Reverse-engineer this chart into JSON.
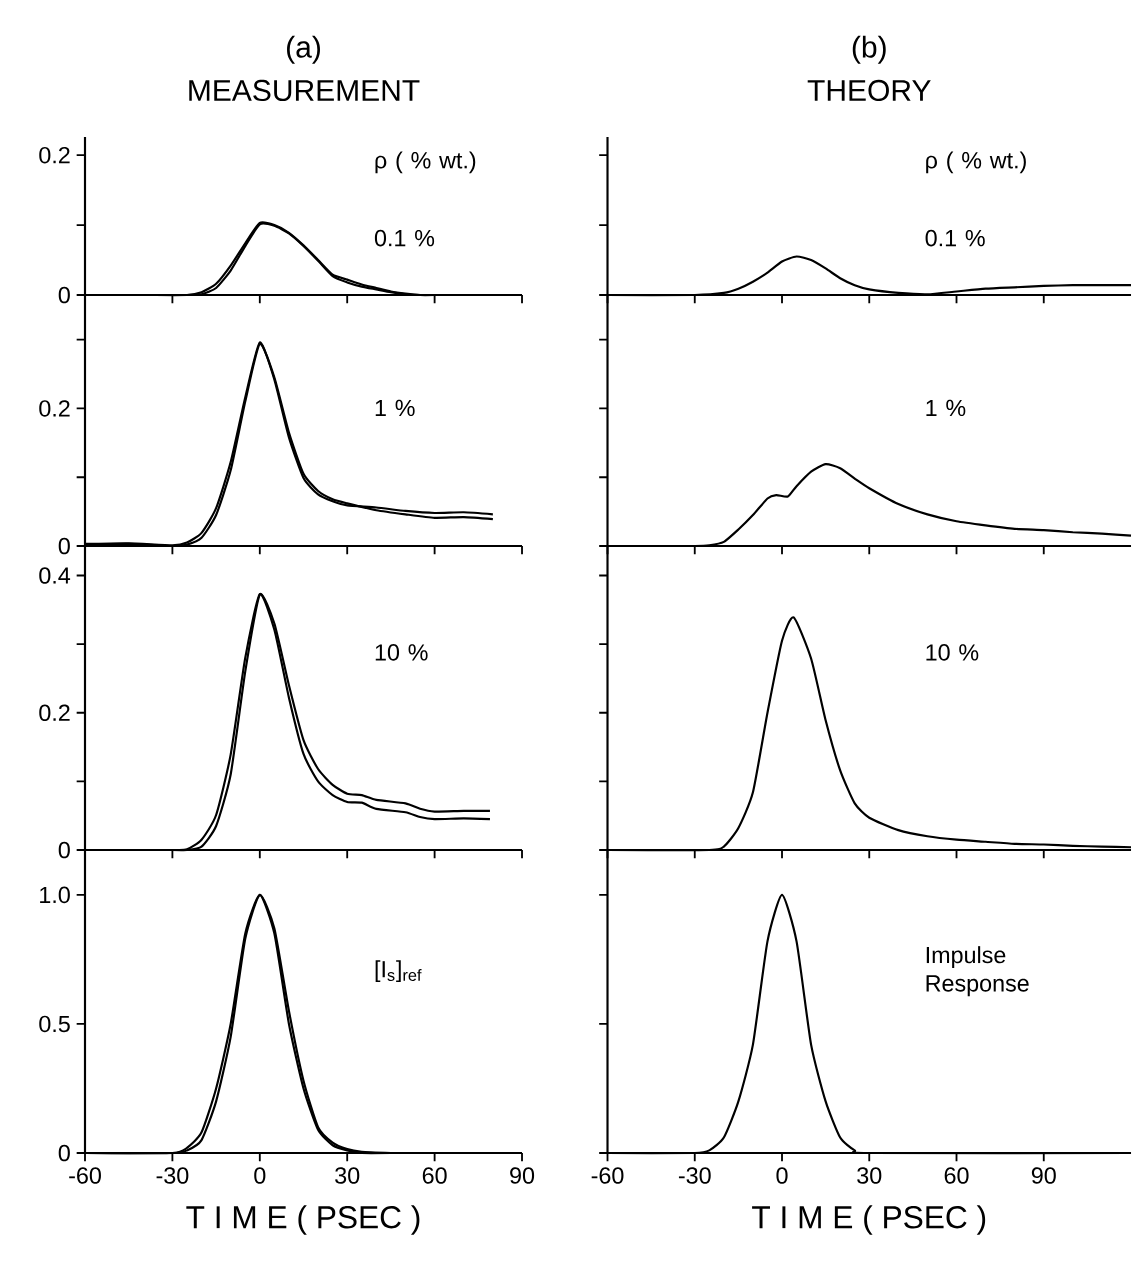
{
  "chart_data": [
    {
      "type": "line",
      "title": "(a)",
      "subtitle": "MEASUREMENT",
      "annotations": [
        "ρ ( % wt.)",
        "0.1 %"
      ],
      "tick_labels": "y",
      "x": [
        -60,
        -40,
        -25,
        -20,
        -15,
        -10,
        -5,
        0,
        5,
        10,
        15,
        20,
        25,
        30,
        35,
        40,
        45,
        50,
        55,
        60
      ],
      "series": [
        {
          "color": "#000000",
          "values": [
            0,
            0,
            0,
            0.004,
            0.016,
            0.042,
            0.074,
            0.103,
            0.1,
            0.089,
            0.071,
            0.05,
            0.029,
            0.022,
            0.015,
            0.01,
            0.005,
            0.002,
            0,
            0
          ]
        },
        {
          "color": "#000000",
          "x": [
            -25,
            -20,
            -15,
            -10,
            -5,
            0,
            5,
            10,
            15,
            20,
            25,
            30,
            35,
            40,
            45,
            50,
            55
          ],
          "values": [
            0,
            0.001,
            0.01,
            0.035,
            0.07,
            0.101,
            0.099,
            0.088,
            0.07,
            0.049,
            0.027,
            0.018,
            0.012,
            0.008,
            0.004,
            0.001,
            0
          ]
        }
      ],
      "xlim": [
        -60,
        90
      ],
      "ylim": [
        0,
        0.226
      ],
      "xticks": [
        -60,
        -30,
        0,
        30,
        60,
        90
      ],
      "yticks": [
        0,
        {
          "value": 0.1,
          "label": null
        },
        0.2
      ]
    },
    {
      "type": "line",
      "title": "(b)",
      "subtitle": "THEORY",
      "annotations": [
        "ρ ( % wt.)",
        "0.1 %"
      ],
      "tick_labels": false,
      "x": [
        -60,
        -30,
        -20,
        -15,
        -10,
        -5,
        0,
        5,
        10,
        15,
        20,
        25,
        30,
        40,
        50,
        60,
        70,
        80,
        90,
        100,
        110,
        120
      ],
      "series": [
        {
          "color": "#000000",
          "values": [
            0,
            0,
            0.003,
            0.009,
            0.019,
            0.032,
            0.048,
            0.055,
            0.05,
            0.038,
            0.024,
            0.014,
            0.008,
            0.003,
            0.001,
            0.005,
            0.009,
            0.011,
            0.013,
            0.014,
            0.014,
            0.014
          ]
        }
      ],
      "xlim": [
        -60,
        120
      ],
      "ylim": [
        0,
        0.226
      ],
      "xticks": [
        -60,
        -30,
        0,
        30,
        60,
        90
      ],
      "yticks": [
        0,
        {
          "value": 0.1,
          "label": null
        },
        0.2
      ]
    },
    {
      "type": "line",
      "annotations": [
        "1 %"
      ],
      "tick_labels": "y",
      "x": [
        -60,
        -45,
        -30,
        -25,
        -20,
        -15,
        -10,
        -5,
        0,
        5,
        10,
        15,
        20,
        25,
        30,
        40,
        50,
        60,
        70,
        80
      ],
      "series": [
        {
          "color": "#000000",
          "values": [
            0.003,
            0.004,
            0.001,
            0.005,
            0.019,
            0.055,
            0.122,
            0.216,
            0.296,
            0.242,
            0.158,
            0.099,
            0.075,
            0.065,
            0.059,
            0.056,
            0.051,
            0.048,
            0.049,
            0.046
          ]
        },
        {
          "color": "#000000",
          "values": [
            0.002,
            0.003,
            0,
            0.002,
            0.012,
            0.045,
            0.11,
            0.21,
            0.294,
            0.245,
            0.165,
            0.105,
            0.08,
            0.068,
            0.062,
            0.052,
            0.046,
            0.041,
            0.042,
            0.039
          ]
        }
      ],
      "xlim": [
        -60,
        90
      ],
      "ylim": [
        0,
        0.365
      ],
      "xticks": [
        -60,
        -30,
        0,
        30,
        60,
        90
      ],
      "yticks": [
        0,
        {
          "value": 0.1,
          "label": null
        },
        0.2,
        {
          "value": 0.3,
          "label": null
        }
      ]
    },
    {
      "type": "line",
      "annotations": [
        "1 %"
      ],
      "tick_labels": false,
      "x": [
        -60,
        -30,
        -25,
        -20,
        -15,
        -10,
        -5,
        -2,
        2,
        5,
        10,
        15,
        20,
        25,
        30,
        40,
        50,
        60,
        70,
        80,
        90,
        100,
        110,
        120
      ],
      "series": [
        {
          "color": "#000000",
          "values": [
            0,
            0,
            0.001,
            0.006,
            0.024,
            0.045,
            0.069,
            0.074,
            0.072,
            0.087,
            0.108,
            0.119,
            0.113,
            0.098,
            0.084,
            0.061,
            0.046,
            0.036,
            0.03,
            0.025,
            0.023,
            0.02,
            0.018,
            0.015
          ]
        }
      ],
      "xlim": [
        -60,
        120
      ],
      "ylim": [
        0,
        0.365
      ],
      "xticks": [
        -60,
        -30,
        0,
        30,
        60,
        90
      ],
      "yticks": [
        0,
        {
          "value": 0.1,
          "label": null
        },
        {
          "value": 0.2,
          "label": null
        },
        {
          "value": 0.3,
          "label": null
        }
      ]
    },
    {
      "type": "line",
      "annotations": [
        "10 %"
      ],
      "tick_labels": "y",
      "x": [
        -60,
        -30,
        -25,
        -20,
        -15,
        -10,
        -5,
        0,
        5,
        10,
        15,
        20,
        25,
        30,
        35,
        40,
        50,
        55,
        60,
        70,
        79
      ],
      "series": [
        {
          "color": "#000000",
          "values": [
            0,
            0,
            0.001,
            0.015,
            0.051,
            0.139,
            0.28,
            0.373,
            0.321,
            0.222,
            0.14,
            0.1,
            0.08,
            0.07,
            0.069,
            0.06,
            0.055,
            0.048,
            0.045,
            0.046,
            0.045
          ]
        },
        {
          "color": "#000000",
          "values": [
            0,
            0,
            0,
            0.005,
            0.035,
            0.11,
            0.26,
            0.372,
            0.33,
            0.24,
            0.16,
            0.118,
            0.095,
            0.082,
            0.08,
            0.073,
            0.068,
            0.06,
            0.056,
            0.057,
            0.057
          ]
        }
      ],
      "xlim": [
        -60,
        90
      ],
      "ylim": [
        0,
        0.443
      ],
      "xticks": [
        -60,
        -30,
        0,
        30,
        60,
        90
      ],
      "yticks": [
        0,
        {
          "value": 0.1,
          "label": null
        },
        0.2,
        {
          "value": 0.3,
          "label": null
        },
        0.4
      ]
    },
    {
      "type": "line",
      "annotations": [
        "10 %"
      ],
      "tick_labels": false,
      "x": [
        -60,
        -25,
        -20,
        -15,
        -10,
        -5,
        0,
        4,
        10,
        15,
        20,
        25,
        30,
        40,
        50,
        60,
        70,
        80,
        90,
        100,
        110,
        120
      ],
      "series": [
        {
          "color": "#000000",
          "values": [
            0,
            0,
            0.005,
            0.032,
            0.084,
            0.2,
            0.305,
            0.339,
            0.279,
            0.189,
            0.116,
            0.068,
            0.047,
            0.029,
            0.02,
            0.015,
            0.012,
            0.009,
            0.008,
            0.006,
            0.005,
            0.004
          ]
        }
      ],
      "xlim": [
        -60,
        120
      ],
      "ylim": [
        0,
        0.443
      ],
      "xticks": [
        -60,
        -30,
        0,
        30,
        60,
        90
      ],
      "yticks": [
        0,
        {
          "value": 0.1,
          "label": null
        },
        {
          "value": 0.2,
          "label": null
        },
        {
          "value": 0.3,
          "label": null
        },
        {
          "value": 0.4,
          "label": null
        }
      ]
    },
    {
      "type": "line",
      "annotations": [
        "[I$_{s}$]$_{ref}$"
      ],
      "xlabel": "T I M E ( PSEC )",
      "x": [
        -60,
        -30,
        -25,
        -20,
        -15,
        -10,
        -5,
        0,
        5,
        10,
        15,
        20,
        25,
        30,
        35,
        45
      ],
      "series": [
        {
          "color": "#000000",
          "values": [
            0,
            0,
            0.02,
            0.08,
            0.25,
            0.5,
            0.85,
            1.0,
            0.85,
            0.5,
            0.25,
            0.09,
            0.03,
            0.01,
            0,
            0
          ]
        },
        {
          "color": "#000000",
          "values": [
            0,
            0,
            0.01,
            0.05,
            0.2,
            0.45,
            0.83,
            1.0,
            0.87,
            0.55,
            0.28,
            0.1,
            0.04,
            0.015,
            0.005,
            0
          ]
        }
      ],
      "xlim": [
        -60,
        90
      ],
      "ylim": [
        0,
        1.174
      ],
      "xticks": [
        -60,
        -30,
        0,
        30,
        60,
        90
      ],
      "yticks": [
        0,
        0.5,
        {
          "value": 1,
          "label": "1.0"
        }
      ]
    },
    {
      "type": "line",
      "annotations": [
        "Impulse Response"
      ],
      "xlabel": "T I M E ( PSEC )",
      "tick_labels": "x",
      "x": [
        -60,
        -30,
        -25,
        -20,
        -15,
        -10,
        -5,
        0,
        5,
        10,
        15,
        20,
        25,
        30,
        120
      ],
      "series": [
        {
          "color": "#000000",
          "values": [
            0,
            0,
            0.01,
            0.06,
            0.2,
            0.42,
            0.82,
            1.0,
            0.82,
            0.42,
            0.2,
            0.06,
            0.01,
            0,
            0
          ]
        }
      ],
      "xlim": [
        -60,
        120
      ],
      "ylim": [
        0,
        1.174
      ],
      "xticks": [
        -60,
        -30,
        0,
        30,
        60,
        90
      ],
      "yticks": [
        {
          "value": 0,
          "label": null
        },
        {
          "value": 0.5,
          "label": null
        },
        {
          "value": 1,
          "label": null
        }
      ]
    }
  ]
}
